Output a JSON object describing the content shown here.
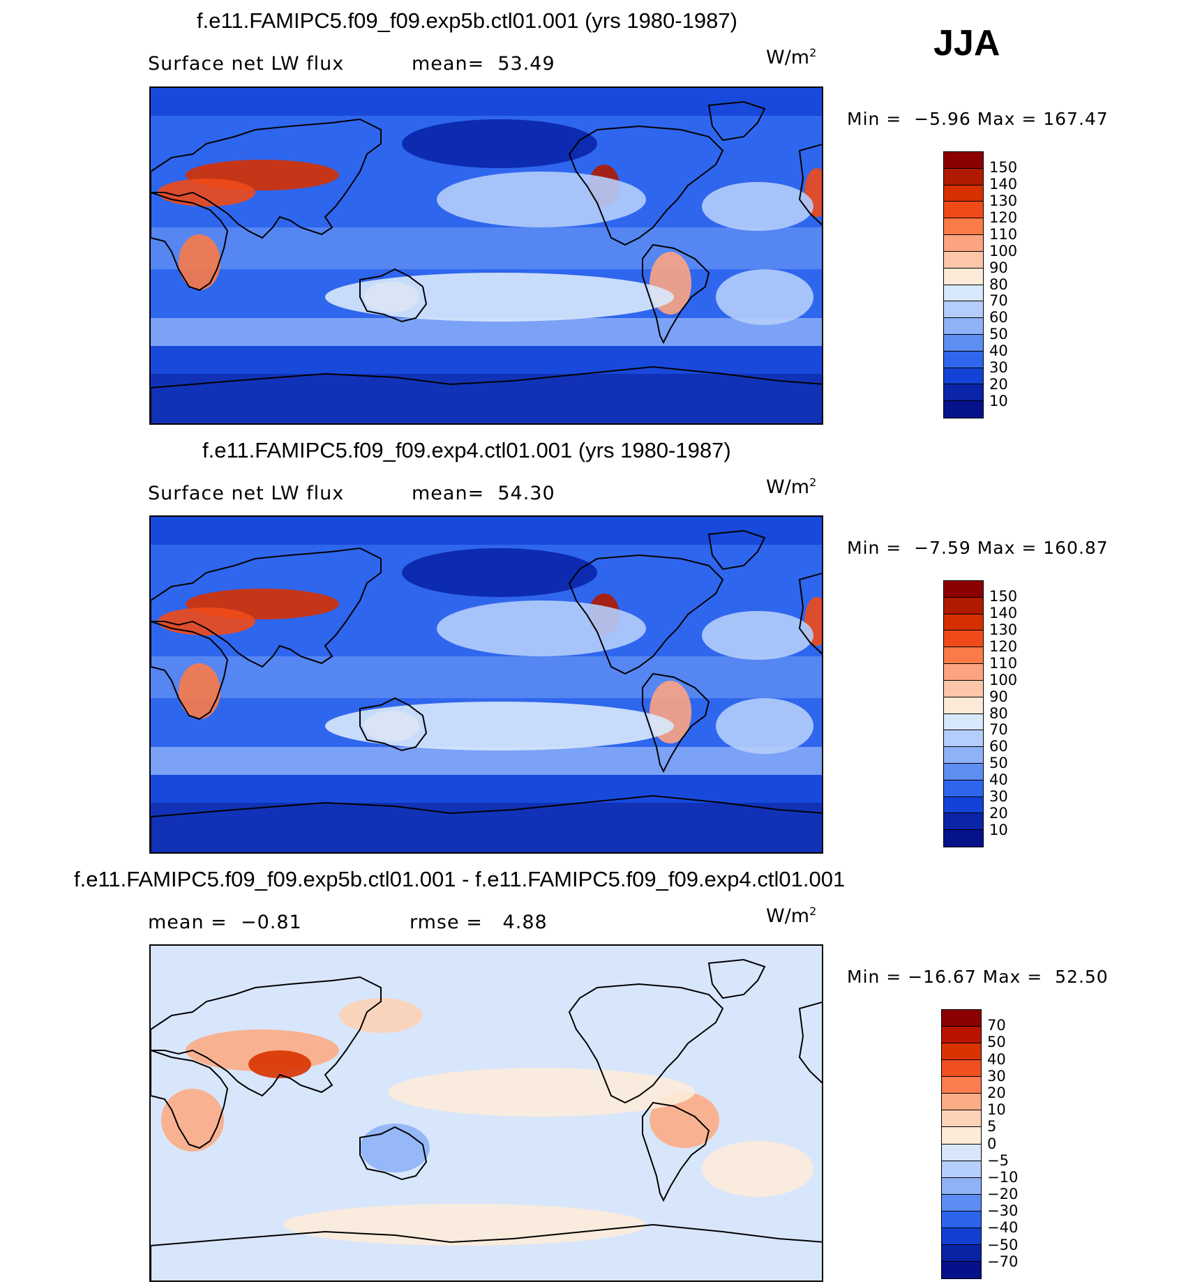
{
  "season": "JJA",
  "panels": [
    {
      "title": "f.e11.FAMIPC5.f09_f09.exp5b.ctl01.001 (yrs 1980-1987)",
      "variable": "Surface net LW flux",
      "stat1": "mean=  53.49",
      "stat2": "",
      "unit": "W/m",
      "unit_sup": "2",
      "minmax": "Min =  −5.96 Max = 167.47",
      "colorbar_labels": [
        "150",
        "140",
        "130",
        "120",
        "110",
        "100",
        "90",
        "80",
        "70",
        "60",
        "50",
        "40",
        "30",
        "20",
        "10"
      ],
      "colorbar_colors": [
        "#8b0000",
        "#b01a00",
        "#d63000",
        "#f04a18",
        "#fa7a48",
        "#fca482",
        "#fcc6a8",
        "#fde9d8",
        "#d8e8fc",
        "#b4cdfb",
        "#8eb1f8",
        "#5f8ef2",
        "#2f66ee",
        "#1342d6",
        "#0a25a8",
        "#06128a"
      ],
      "palette_scheme": "absolute"
    },
    {
      "title": "f.e11.FAMIPC5.f09_f09.exp4.ctl01.001 (yrs 1980-1987)",
      "variable": "Surface net LW flux",
      "stat1": "mean=  54.30",
      "stat2": "",
      "unit": "W/m",
      "unit_sup": "2",
      "minmax": "Min =  −7.59 Max = 160.87",
      "colorbar_labels": [
        "150",
        "140",
        "130",
        "120",
        "110",
        "100",
        "90",
        "80",
        "70",
        "60",
        "50",
        "40",
        "30",
        "20",
        "10"
      ],
      "colorbar_colors": [
        "#8b0000",
        "#b01a00",
        "#d63000",
        "#f04a18",
        "#fa7a48",
        "#fca482",
        "#fcc6a8",
        "#fde9d8",
        "#d8e8fc",
        "#b4cdfb",
        "#8eb1f8",
        "#5f8ef2",
        "#2f66ee",
        "#1342d6",
        "#0a25a8",
        "#06128a"
      ],
      "palette_scheme": "absolute"
    },
    {
      "title": "f.e11.FAMIPC5.f09_f09.exp5b.ctl01.001 - f.e11.FAMIPC5.f09_f09.exp4.ctl01.001",
      "variable": "",
      "stat1": "mean =  −0.81",
      "stat2": "rmse =   4.88",
      "unit": "W/m",
      "unit_sup": "2",
      "minmax": "Min = −16.67 Max =  52.50",
      "colorbar_labels": [
        "70",
        "50",
        "40",
        "30",
        "20",
        "10",
        "5",
        "0",
        "−5",
        "−10",
        "−20",
        "−30",
        "−40",
        "−50",
        "−70"
      ],
      "colorbar_colors": [
        "#8b0000",
        "#b81400",
        "#d83300",
        "#f05020",
        "#f97d4e",
        "#fcac86",
        "#fdd2b6",
        "#fdebd9",
        "#d8e6fb",
        "#b6cefb",
        "#8fb2f7",
        "#5d8df2",
        "#2d64ec",
        "#123fd2",
        "#0a23a4",
        "#06108a"
      ],
      "palette_scheme": "difference"
    }
  ]
}
